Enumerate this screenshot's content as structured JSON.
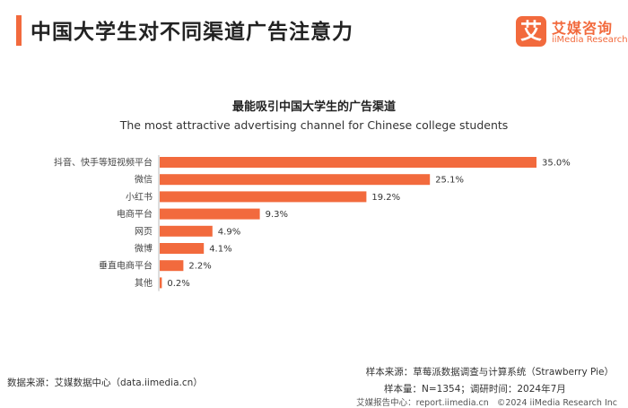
{
  "header": {
    "title": "中国大学生对不同渠道广告注意力",
    "accent_color": "#f26a3d"
  },
  "logo": {
    "mark": "艾",
    "name_cn": "艾媒咨询",
    "name_en": "iiMedia Research",
    "color": "#f26a3d"
  },
  "chart_data": {
    "type": "bar",
    "orientation": "horizontal",
    "title": "最能吸引中国大学生的广告渠道",
    "subtitle": "The most attractive advertising channel for Chinese college students",
    "categories": [
      "抖音、快手等短视频平台",
      "微信",
      "小红书",
      "电商平台",
      "网页",
      "微博",
      "垂直电商平台",
      "其他"
    ],
    "values": [
      35.0,
      25.1,
      19.2,
      9.3,
      4.9,
      4.1,
      2.2,
      0.2
    ],
    "value_labels": [
      "35.0%",
      "25.1%",
      "19.2%",
      "9.3%",
      "4.9%",
      "4.1%",
      "2.2%",
      "0.2%"
    ],
    "unit": "%",
    "bar_color": "#f26a3d",
    "xlim": [
      0,
      35
    ],
    "grid": false,
    "legend": "none"
  },
  "footer": {
    "source_left": "数据来源：艾媒数据中心（data.iimedia.cn）",
    "sample_source": "样本来源：草莓派数据调查与计算系统（Strawberry Pie）",
    "sample_size": "样本量：N=1354；调研时间：2024年7月",
    "strip_report": "艾媒报告中心：report.iimedia.cn",
    "strip_copyright": "©2024  iiMedia Research  Inc"
  }
}
